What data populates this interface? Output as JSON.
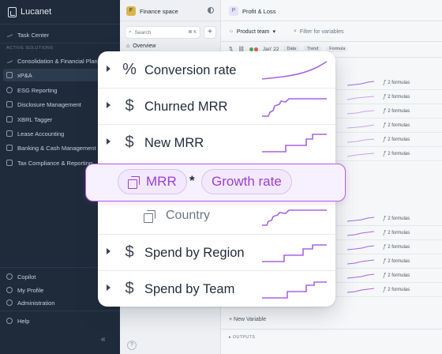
{
  "app": {
    "brand": "Lucanet"
  },
  "sidebar": {
    "task_center": "Task Center",
    "section_label": "ACTIVE SOLUTIONS",
    "items": [
      {
        "label": "Consolidation & Financial Planning"
      },
      {
        "label": "xP&A",
        "active": true
      },
      {
        "label": "ESG Reporting"
      },
      {
        "label": "Disclosure Management"
      },
      {
        "label": "XBRL Tagger"
      },
      {
        "label": "Lease Accounting"
      },
      {
        "label": "Banking & Cash Management"
      },
      {
        "label": "Tax Compliance & Reporting"
      }
    ],
    "bottom": [
      {
        "label": "Copilot"
      },
      {
        "label": "My Profile"
      },
      {
        "label": "Administration"
      }
    ],
    "help": "Help",
    "collapse_glyph": "«"
  },
  "middle": {
    "space_initial": "F",
    "space_title": "Finance space",
    "search_placeholder": "Search",
    "search_shortcut": "⌘ K",
    "add_glyph": "+",
    "overview": "Overview",
    "help_glyph": "?"
  },
  "right": {
    "header_initial": "P",
    "header_title": "Profit & Loss",
    "team_filter": "Product team",
    "variables_filter": "Filter for variables",
    "period": "Jan' 22",
    "chips": [
      "Data",
      "Trend",
      "Formula"
    ],
    "formulas_label": "2 formulas",
    "new_variable": "+ New Variable",
    "outputs": "OUTPUTS"
  },
  "card": {
    "rows_top": [
      {
        "symbol": "%",
        "label": "Conversion rate"
      },
      {
        "symbol": "$",
        "label": "Churned MRR"
      },
      {
        "symbol": "$",
        "label": "New MRR"
      }
    ],
    "formula": {
      "left": "MRR",
      "operator": "*",
      "right": "Growth rate"
    },
    "child": {
      "label": "Country"
    },
    "rows_bottom": [
      {
        "symbol": "$",
        "label": "Spend by Region"
      },
      {
        "symbol": "$",
        "label": "Spend by Team"
      }
    ]
  },
  "colors": {
    "sidebar_bg": "#1f2b3a",
    "accent_purple": "#9a3fd6",
    "sparkline": "#a564e6"
  }
}
